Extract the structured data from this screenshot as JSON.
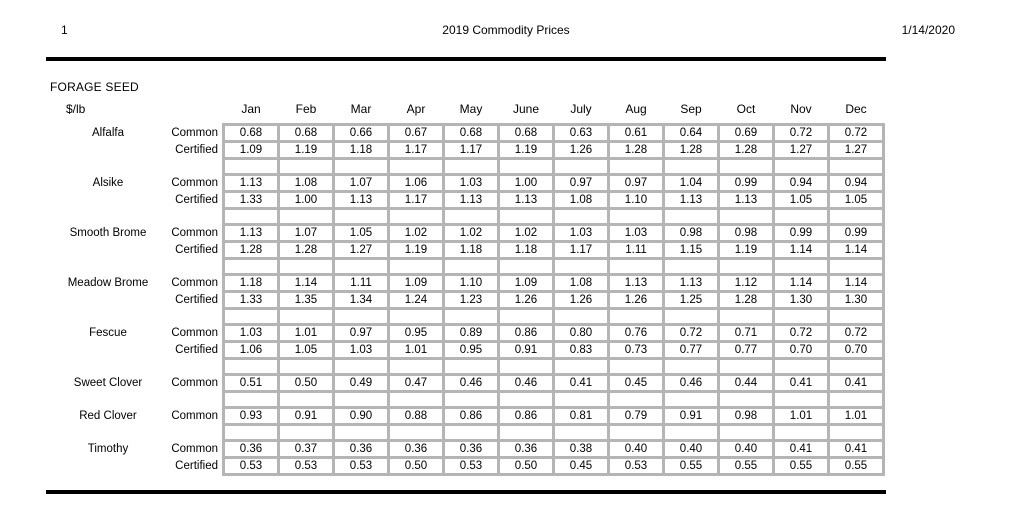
{
  "header": {
    "page_number": "1",
    "title": "2019 Commodity Prices",
    "date": "1/14/2020"
  },
  "table": {
    "section_title": "FORAGE SEED",
    "unit_label": "$/lb",
    "months": [
      "Jan",
      "Feb",
      "Mar",
      "Apr",
      "May",
      "June",
      "July",
      "Aug",
      "Sep",
      "Oct",
      "Nov",
      "Dec"
    ],
    "commodities": [
      {
        "name": "Alfalfa",
        "rows": [
          {
            "grade": "Common",
            "values": [
              "0.68",
              "0.68",
              "0.66",
              "0.67",
              "0.68",
              "0.68",
              "0.63",
              "0.61",
              "0.64",
              "0.69",
              "0.72",
              "0.72"
            ]
          },
          {
            "grade": "Certified",
            "values": [
              "1.09",
              "1.19",
              "1.18",
              "1.17",
              "1.17",
              "1.19",
              "1.26",
              "1.28",
              "1.28",
              "1.28",
              "1.27",
              "1.27"
            ]
          }
        ]
      },
      {
        "name": "Alsike",
        "rows": [
          {
            "grade": "Common",
            "values": [
              "1.13",
              "1.08",
              "1.07",
              "1.06",
              "1.03",
              "1.00",
              "0.97",
              "0.97",
              "1.04",
              "0.99",
              "0.94",
              "0.94"
            ]
          },
          {
            "grade": "Certified",
            "values": [
              "1.33",
              "1.00",
              "1.13",
              "1.17",
              "1.13",
              "1.13",
              "1.08",
              "1.10",
              "1.13",
              "1.13",
              "1.05",
              "1.05"
            ]
          }
        ]
      },
      {
        "name": "Smooth Brome",
        "rows": [
          {
            "grade": "Common",
            "values": [
              "1.13",
              "1.07",
              "1.05",
              "1.02",
              "1.02",
              "1.02",
              "1.03",
              "1.03",
              "0.98",
              "0.98",
              "0.99",
              "0.99"
            ]
          },
          {
            "grade": "Certified",
            "values": [
              "1.28",
              "1.28",
              "1.27",
              "1.19",
              "1.18",
              "1.18",
              "1.17",
              "1.11",
              "1.15",
              "1.19",
              "1.14",
              "1.14"
            ]
          }
        ]
      },
      {
        "name": "Meadow Brome",
        "rows": [
          {
            "grade": "Common",
            "values": [
              "1.18",
              "1.14",
              "1.11",
              "1.09",
              "1.10",
              "1.09",
              "1.08",
              "1.13",
              "1.13",
              "1.12",
              "1.14",
              "1.14"
            ]
          },
          {
            "grade": "Certified",
            "values": [
              "1.33",
              "1.35",
              "1.34",
              "1.24",
              "1.23",
              "1.26",
              "1.26",
              "1.26",
              "1.25",
              "1.28",
              "1.30",
              "1.30"
            ]
          }
        ]
      },
      {
        "name": "Fescue",
        "rows": [
          {
            "grade": "Common",
            "values": [
              "1.03",
              "1.01",
              "0.97",
              "0.95",
              "0.89",
              "0.86",
              "0.80",
              "0.76",
              "0.72",
              "0.71",
              "0.72",
              "0.72"
            ]
          },
          {
            "grade": "Certified",
            "values": [
              "1.06",
              "1.05",
              "1.03",
              "1.01",
              "0.95",
              "0.91",
              "0.83",
              "0.73",
              "0.77",
              "0.77",
              "0.70",
              "0.70"
            ]
          }
        ]
      },
      {
        "name": "Sweet Clover",
        "rows": [
          {
            "grade": "Common",
            "values": [
              "0.51",
              "0.50",
              "0.49",
              "0.47",
              "0.46",
              "0.46",
              "0.41",
              "0.45",
              "0.46",
              "0.44",
              "0.41",
              "0.41"
            ]
          }
        ]
      },
      {
        "name": "Red Clover",
        "rows": [
          {
            "grade": "Common",
            "values": [
              "0.93",
              "0.91",
              "0.90",
              "0.88",
              "0.86",
              "0.86",
              "0.81",
              "0.79",
              "0.91",
              "0.98",
              "1.01",
              "1.01"
            ]
          }
        ]
      },
      {
        "name": "Timothy",
        "rows": [
          {
            "grade": "Common",
            "values": [
              "0.36",
              "0.37",
              "0.36",
              "0.36",
              "0.36",
              "0.36",
              "0.38",
              "0.40",
              "0.40",
              "0.40",
              "0.41",
              "0.41"
            ]
          },
          {
            "grade": "Certified",
            "values": [
              "0.53",
              "0.53",
              "0.53",
              "0.50",
              "0.53",
              "0.50",
              "0.45",
              "0.53",
              "0.55",
              "0.55",
              "0.55",
              "0.55"
            ]
          }
        ]
      }
    ]
  },
  "colors": {
    "grid_gray": "#b5b5b5",
    "rule_black": "#000000"
  }
}
